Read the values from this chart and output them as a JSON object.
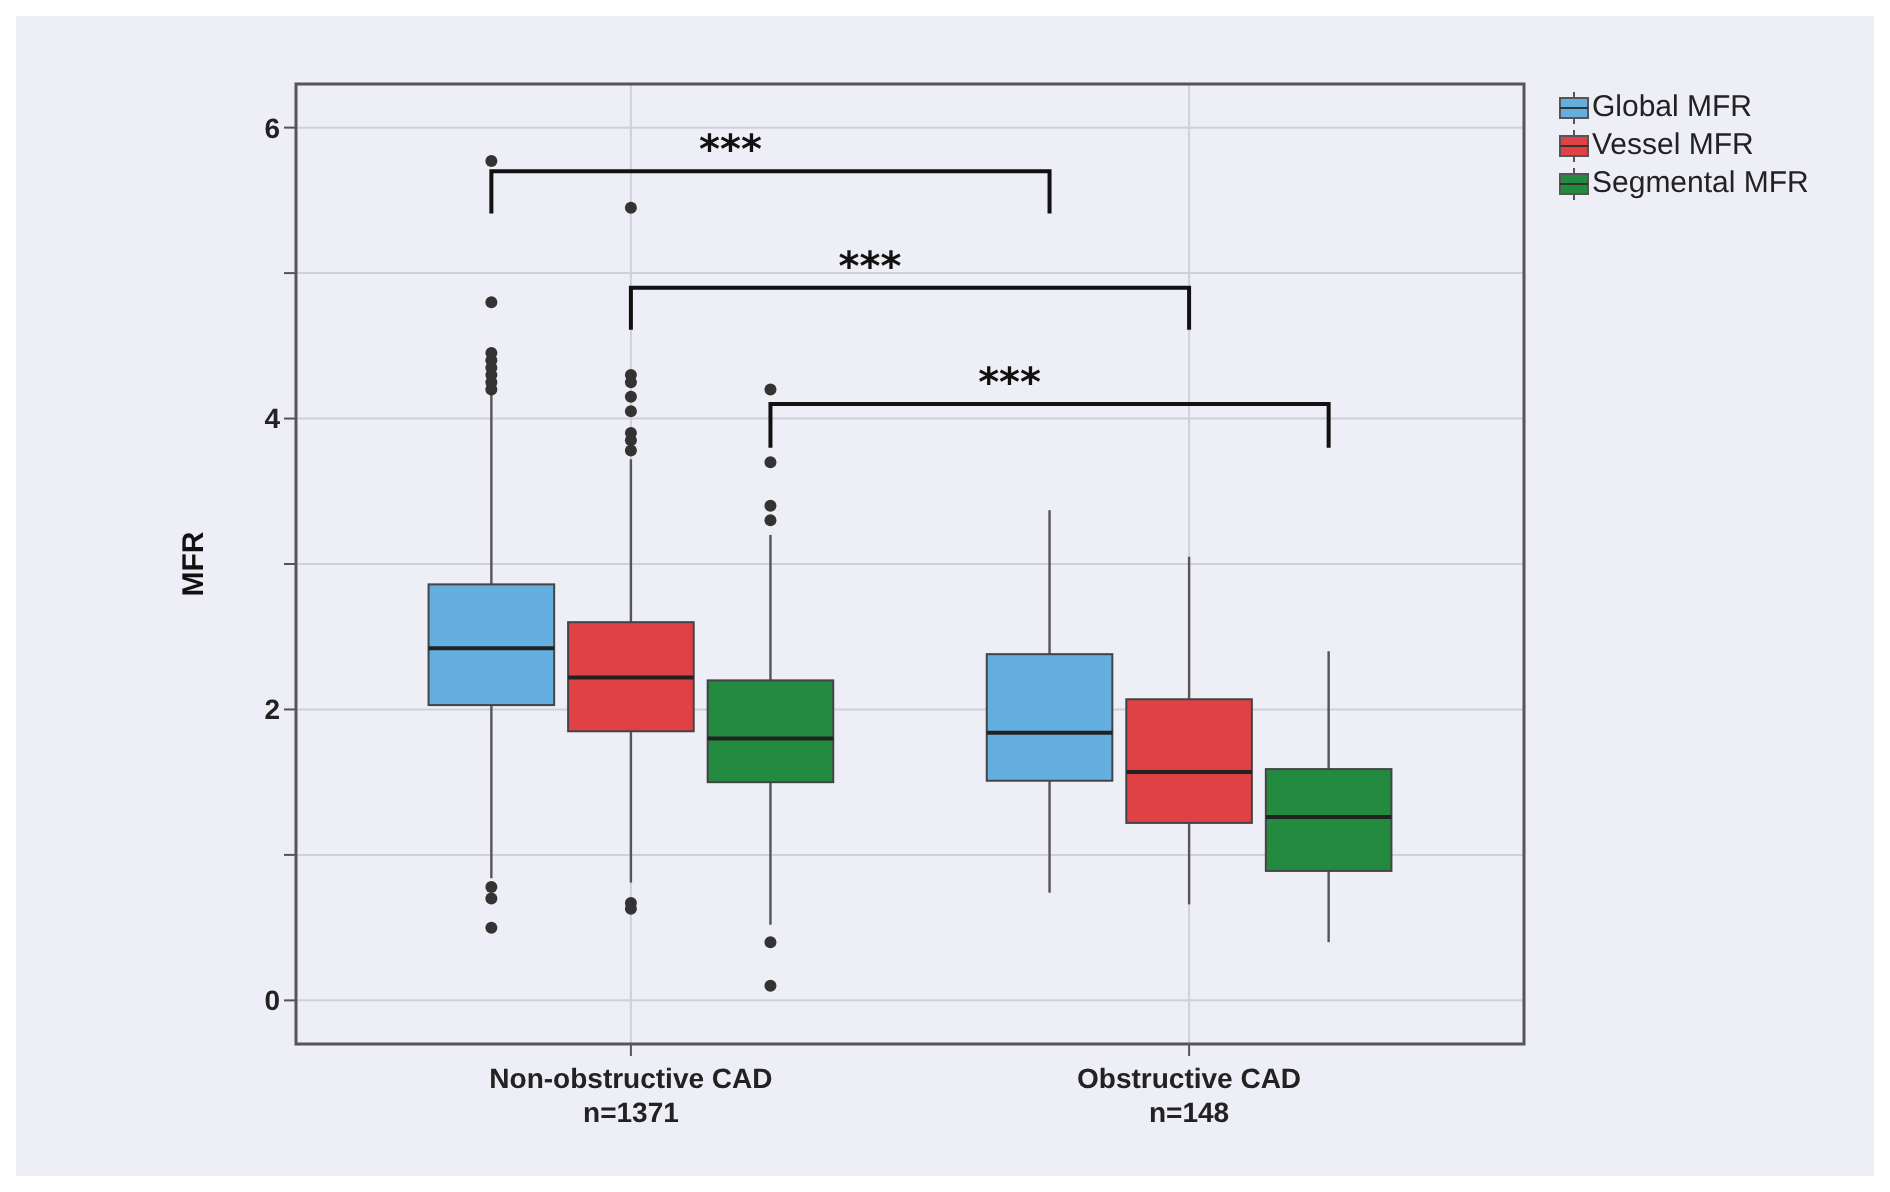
{
  "chart_data": {
    "type": "box",
    "ylabel": "MFR",
    "categories": [
      "Non-obstructive CAD\nn=1371",
      "Obstructive CAD\nn=148"
    ],
    "ylim": [
      -0.3,
      6.3
    ],
    "yticks": [
      0,
      {
        "value": 1,
        "label": null
      },
      2,
      {
        "value": 3,
        "label": null
      },
      4,
      {
        "value": 5,
        "label": null
      },
      6
    ],
    "grid": true,
    "legend": "right",
    "series": [
      {
        "name": "Global MFR",
        "color": "#64aee0",
        "boxes": [
          {
            "low": 0.84,
            "q1": 2.03,
            "median": 2.42,
            "q3": 2.86,
            "high": 4.17,
            "outliers": [
              5.77,
              4.8,
              4.45,
              4.4,
              4.35,
              4.3,
              4.25,
              4.2,
              0.78,
              0.7,
              0.5
            ]
          },
          {
            "low": 0.74,
            "q1": 1.51,
            "median": 1.84,
            "q3": 2.38,
            "high": 3.37
          }
        ]
      },
      {
        "name": "Vessel MFR",
        "color": "#e04145",
        "boxes": [
          {
            "low": 0.81,
            "q1": 1.85,
            "median": 2.22,
            "q3": 2.6,
            "high": 3.72,
            "outliers": [
              5.45,
              4.3,
              4.25,
              4.15,
              4.05,
              3.9,
              3.85,
              3.78,
              0.67,
              0.63
            ]
          },
          {
            "low": 0.66,
            "q1": 1.22,
            "median": 1.57,
            "q3": 2.07,
            "high": 3.05
          }
        ]
      },
      {
        "name": "Segmental MFR",
        "color": "#228b40",
        "boxes": [
          {
            "low": 0.52,
            "q1": 1.5,
            "median": 1.8,
            "q3": 2.2,
            "high": 3.2,
            "outliers": [
              4.2,
              3.7,
              3.4,
              3.3,
              0.4,
              0.1
            ]
          },
          {
            "low": 0.4,
            "q1": 0.89,
            "median": 1.26,
            "q3": 1.59,
            "high": 2.4
          }
        ]
      }
    ],
    "annotations": [
      "***",
      "***",
      "***"
    ]
  }
}
